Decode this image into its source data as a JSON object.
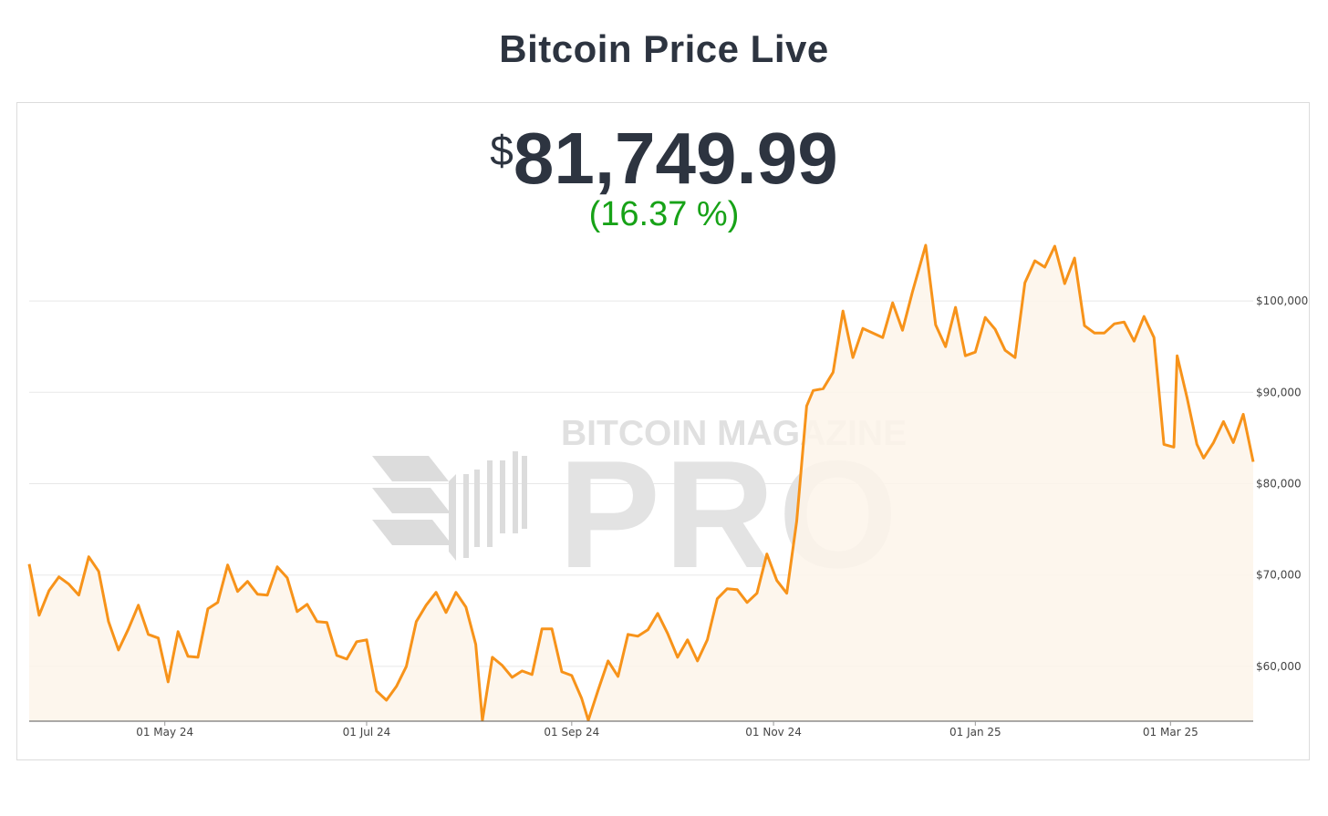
{
  "header": {
    "title": "Bitcoin Price Live"
  },
  "price": {
    "currency_symbol": "$",
    "value": "81,749.99",
    "change": "(16.37 %)"
  },
  "watermark": {
    "line1": "BITCOIN MAGAZINE",
    "line2": "PRO"
  },
  "colors": {
    "line": "#f7931a",
    "fill": "#fdf5ea",
    "change_positive": "#17a217",
    "grid": "#e8e8e8"
  },
  "chart_data": {
    "type": "area",
    "title": "",
    "xlabel": "",
    "ylabel": "",
    "ylim": [
      54000,
      106000
    ],
    "x_range": [
      "2024-03-21",
      "2025-03-26"
    ],
    "y_ticks": [
      60000,
      70000,
      80000,
      90000,
      100000
    ],
    "y_tick_labels": [
      "$60,000",
      "$70,000",
      "$80,000",
      "$90,000",
      "$100,000"
    ],
    "x_ticks": [
      "2024-05-01",
      "2024-07-01",
      "2024-09-01",
      "2024-11-01",
      "2025-01-01",
      "2025-03-01"
    ],
    "x_tick_labels": [
      "01 May 24",
      "01 Jul 24",
      "01 Sep 24",
      "01 Nov 24",
      "01 Jan 25",
      "01 Mar 25"
    ],
    "grid": true,
    "legend": "none",
    "series": [
      {
        "x": [
          "2024-03-21",
          "2024-03-24",
          "2024-03-27",
          "2024-03-30",
          "2024-04-02",
          "2024-04-05",
          "2024-04-08",
          "2024-04-11",
          "2024-04-14",
          "2024-04-17",
          "2024-04-20",
          "2024-04-23",
          "2024-04-26",
          "2024-04-29",
          "2024-05-02",
          "2024-05-05",
          "2024-05-08",
          "2024-05-11",
          "2024-05-14",
          "2024-05-17",
          "2024-05-20",
          "2024-05-23",
          "2024-05-26",
          "2024-05-29",
          "2024-06-01",
          "2024-06-04",
          "2024-06-07",
          "2024-06-10",
          "2024-06-13",
          "2024-06-16",
          "2024-06-19",
          "2024-06-22",
          "2024-06-25",
          "2024-06-28",
          "2024-07-01",
          "2024-07-04",
          "2024-07-07",
          "2024-07-10",
          "2024-07-13",
          "2024-07-16",
          "2024-07-19",
          "2024-07-22",
          "2024-07-25",
          "2024-07-28",
          "2024-07-31",
          "2024-08-03",
          "2024-08-05",
          "2024-08-08",
          "2024-08-11",
          "2024-08-14",
          "2024-08-17",
          "2024-08-20",
          "2024-08-23",
          "2024-08-26",
          "2024-08-29",
          "2024-09-01",
          "2024-09-04",
          "2024-09-06",
          "2024-09-09",
          "2024-09-12",
          "2024-09-15",
          "2024-09-18",
          "2024-09-21",
          "2024-09-24",
          "2024-09-27",
          "2024-09-30",
          "2024-10-03",
          "2024-10-06",
          "2024-10-09",
          "2024-10-12",
          "2024-10-15",
          "2024-10-18",
          "2024-10-21",
          "2024-10-24",
          "2024-10-27",
          "2024-10-30",
          "2024-11-02",
          "2024-11-05",
          "2024-11-08",
          "2024-11-11",
          "2024-11-13",
          "2024-11-16",
          "2024-11-19",
          "2024-11-22",
          "2024-11-25",
          "2024-11-28",
          "2024-12-01",
          "2024-12-04",
          "2024-12-07",
          "2024-12-10",
          "2024-12-13",
          "2024-12-17",
          "2024-12-20",
          "2024-12-23",
          "2024-12-26",
          "2024-12-29",
          "2025-01-01",
          "2025-01-04",
          "2025-01-07",
          "2025-01-10",
          "2025-01-13",
          "2025-01-16",
          "2025-01-19",
          "2025-01-22",
          "2025-01-25",
          "2025-01-28",
          "2025-01-31",
          "2025-02-03",
          "2025-02-06",
          "2025-02-09",
          "2025-02-12",
          "2025-02-15",
          "2025-02-18",
          "2025-02-21",
          "2025-02-24",
          "2025-02-27",
          "2025-03-02",
          "2025-03-03",
          "2025-03-06",
          "2025-03-09",
          "2025-03-11",
          "2025-03-14",
          "2025-03-17",
          "2025-03-20",
          "2025-03-23",
          "2025-03-26"
        ],
        "y": [
          71200,
          65600,
          68300,
          69800,
          69000,
          67800,
          72000,
          70400,
          64900,
          61800,
          64100,
          66700,
          63500,
          63100,
          58300,
          63800,
          61100,
          61000,
          66300,
          67000,
          71100,
          68200,
          69300,
          67900,
          67800,
          70900,
          69700,
          66000,
          66800,
          64900,
          64800,
          61200,
          60800,
          62700,
          62900,
          57300,
          56300,
          57800,
          60000,
          64900,
          66700,
          68100,
          65900,
          68100,
          66500,
          62400,
          54100,
          61000,
          60100,
          58800,
          59500,
          59100,
          64100,
          64100,
          59400,
          59000,
          56500,
          54100,
          57400,
          60600,
          58900,
          63500,
          63300,
          64000,
          65800,
          63600,
          61000,
          62900,
          60600,
          62900,
          67400,
          68500,
          68400,
          67000,
          68000,
          72300,
          69400,
          68000,
          75900,
          88500,
          90200,
          90400,
          92200,
          98900,
          93800,
          97000,
          96500,
          96000,
          99800,
          96800,
          101000,
          106100,
          97400,
          95000,
          99300,
          94000,
          94400,
          98200,
          96900,
          94600,
          93800,
          102000,
          104400,
          103700,
          106000,
          101900,
          104700,
          97300,
          96500,
          96500,
          97500,
          97700,
          95600,
          98300,
          96000,
          84300,
          84000,
          94000,
          89400,
          84300,
          82800,
          84500,
          86800,
          84500,
          87600,
          82400
        ]
      }
    ]
  }
}
